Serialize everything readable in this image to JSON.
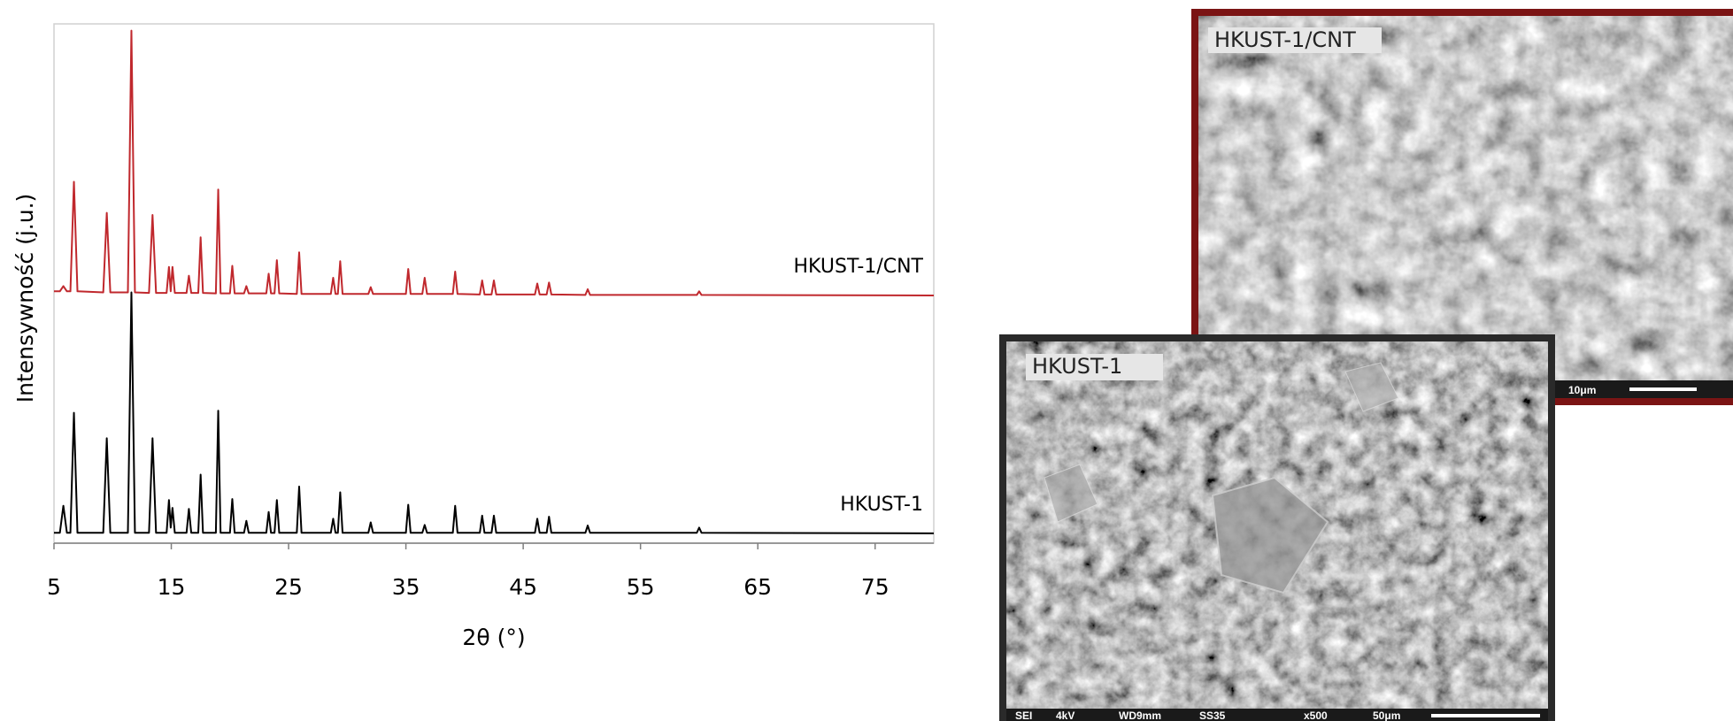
{
  "chart_data": {
    "type": "line",
    "x_label": "2θ (°)",
    "y_label": "Intensywność (j.u.)",
    "xlim": [
      5,
      80
    ],
    "xticks": [
      5,
      15,
      25,
      35,
      45,
      55,
      65,
      75
    ],
    "ylim": [
      0,
      100
    ],
    "x": [
      5,
      5.5,
      5.8,
      6.1,
      6.4,
      6.7,
      7.0,
      9.2,
      9.5,
      9.8,
      11.3,
      11.6,
      11.9,
      13.1,
      13.4,
      13.7,
      14.6,
      14.8,
      14.95,
      15.1,
      15.3,
      16.3,
      16.5,
      16.7,
      17.3,
      17.5,
      17.7,
      18.8,
      19.0,
      19.2,
      20.0,
      20.2,
      20.4,
      21.2,
      21.4,
      21.6,
      23.1,
      23.3,
      23.5,
      23.8,
      24.0,
      24.2,
      25.7,
      25.9,
      26.1,
      28.6,
      28.8,
      29.0,
      29.2,
      29.4,
      29.6,
      31.8,
      32.0,
      32.2,
      35.0,
      35.2,
      35.4,
      36.4,
      36.6,
      36.8,
      39.0,
      39.2,
      39.4,
      41.3,
      41.5,
      41.7,
      42.3,
      42.5,
      42.7,
      46.0,
      46.2,
      46.4,
      47.0,
      47.2,
      47.4,
      50.3,
      50.5,
      50.7,
      59.8,
      60.0,
      60.2,
      80
    ],
    "series": [
      {
        "name": "HKUST-1/CNT",
        "color": "#c0282d",
        "values": [
          48.5,
          48.5,
          49.5,
          48.5,
          48.5,
          69.6,
          48.5,
          48.3,
          63.6,
          48.3,
          48.3,
          98.7,
          48.3,
          48.2,
          63.2,
          48.2,
          48.2,
          53.2,
          48.5,
          53.2,
          48.2,
          48.2,
          51.5,
          48.2,
          48.2,
          58.9,
          48.2,
          48.1,
          68.1,
          48.1,
          48.1,
          53.4,
          48.1,
          48.1,
          49.5,
          48.1,
          48.1,
          51.9,
          48.1,
          48.1,
          54.5,
          48.1,
          48,
          56,
          48,
          48,
          51.1,
          48,
          48,
          54.3,
          48,
          48,
          49.3,
          48,
          48,
          52.8,
          48,
          48,
          51.1,
          48,
          48,
          52.3,
          48,
          47.9,
          50.6,
          47.9,
          47.9,
          50.6,
          47.9,
          47.9,
          50,
          47.9,
          47.9,
          50.2,
          47.9,
          47.8,
          48.9,
          47.8,
          47.8,
          48.5,
          47.8,
          47.7
        ]
      },
      {
        "name": "HKUST-1",
        "color": "#000000",
        "values": [
          2,
          2,
          7.2,
          2,
          2,
          25.1,
          2,
          2,
          20.2,
          2,
          2,
          48.3,
          2,
          2,
          20.2,
          2,
          2,
          8.3,
          3,
          6.8,
          2,
          2,
          6.6,
          2,
          2,
          13.2,
          2,
          2,
          25.5,
          2,
          2,
          8.5,
          2,
          2,
          4.3,
          2,
          2,
          6.0,
          2,
          2,
          8.3,
          2,
          2,
          10.9,
          2,
          2,
          4.7,
          2,
          2,
          9.8,
          2,
          2,
          4,
          2,
          2,
          7.4,
          2,
          2,
          3.5,
          2,
          2,
          7.2,
          2,
          2,
          5.3,
          2,
          2,
          5.3,
          2,
          2,
          4.7,
          2,
          2,
          5.1,
          2,
          2,
          3.4,
          2,
          2,
          3.0,
          2,
          1.9
        ]
      }
    ]
  },
  "images": [
    {
      "label": "HKUST-1/CNT",
      "scale_text": "10μm"
    },
    {
      "label": "HKUST-1",
      "info": [
        "SEI",
        "4kV",
        "WD9mm",
        "SS35",
        "x500",
        "50μm"
      ]
    }
  ]
}
